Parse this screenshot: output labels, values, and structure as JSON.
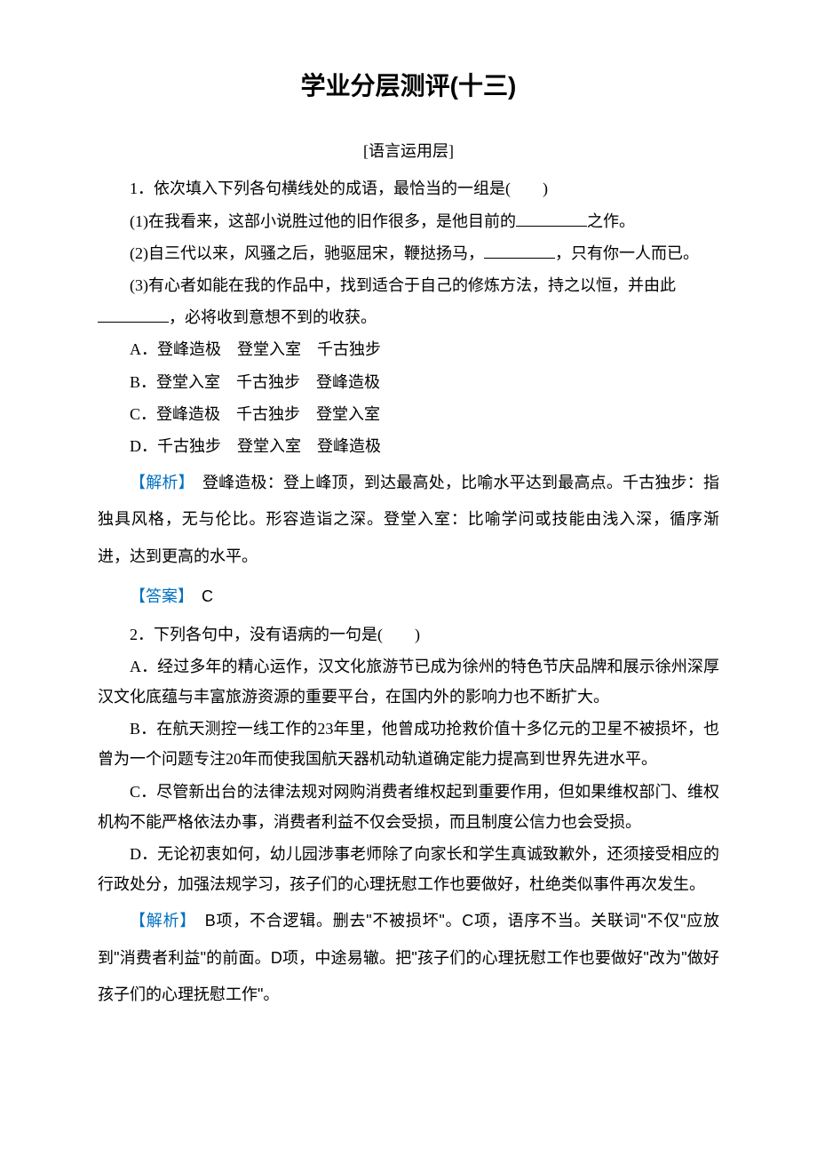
{
  "title": "学业分层测评(十三)",
  "section_label": "[语言运用层]",
  "q1": {
    "stem": "1．依次填入下列各句横线处的成语，最恰当的一组是(　　)",
    "s1a": "(1)在我看来，这部小说胜过他的旧作很多，是他目前的",
    "s1b": "之作。",
    "s2a": "(2)自三代以来，风骚之后，驰驱屈宋，鞭挞扬马，",
    "s2b": "，只有你一人而已。",
    "s3a": "(3)有心者如能在我的作品中，找到适合于自己的修炼方法，持之以恒，并由此",
    "s3b": "，必将收到意想不到的收获。",
    "optA": "A．登峰造极　登堂入室　千古独步",
    "optB": "B．登堂入室　千古独步　登峰造极",
    "optC": "C．登峰造极　千古独步　登堂入室",
    "optD": "D．千古独步　登堂入室　登峰造极",
    "analysis_label": "【解析】",
    "analysis_text": "　登峰造极：登上峰顶，到达最高处，比喻水平达到最高点。千古独步：指独具风格，无与伦比。形容造诣之深。登堂入室：比喻学问或技能由浅入深，循序渐进，达到更高的水平。",
    "answer_label": "【答案】",
    "answer_text": "　C"
  },
  "q2": {
    "stem": "2．下列各句中，没有语病的一句是(　　)",
    "optA": "A．经过多年的精心运作，汉文化旅游节已成为徐州的特色节庆品牌和展示徐州深厚汉文化底蕴与丰富旅游资源的重要平台，在国内外的影响力也不断扩大。",
    "optB": "B．在航天测控一线工作的23年里，他曾成功抢救价值十多亿元的卫星不被损坏，也曾为一个问题专注20年而使我国航天器机动轨道确定能力提高到世界先进水平。",
    "optC": "C．尽管新出台的法律法规对网购消费者维权起到重要作用，但如果维权部门、维权机构不能严格依法办事，消费者利益不仅会受损，而且制度公信力也会受损。",
    "optD": "D．无论初衷如何，幼儿园涉事老师除了向家长和学生真诚致歉外，还须接受相应的行政处分，加强法规学习，孩子们的心理抚慰工作也要做好，杜绝类似事件再次发生。",
    "analysis_label": "【解析】",
    "analysis_text": "　B项，不合逻辑。删去\"不被损坏\"。C项，语序不当。关联词\"不仅\"应放到\"消费者利益\"的前面。D项，中途易辙。把\"孩子们的心理抚慰工作也要做好\"改为\"做好孩子们的心理抚慰工作\"。"
  },
  "colors": {
    "text": "#000000",
    "accent": "#0070c0",
    "background": "#ffffff"
  },
  "fonts": {
    "body_family": "SimSun",
    "heading_family": "SimHei",
    "analysis_family": "Microsoft YaHei",
    "title_size_pt": 21,
    "body_size_pt": 13.5
  }
}
